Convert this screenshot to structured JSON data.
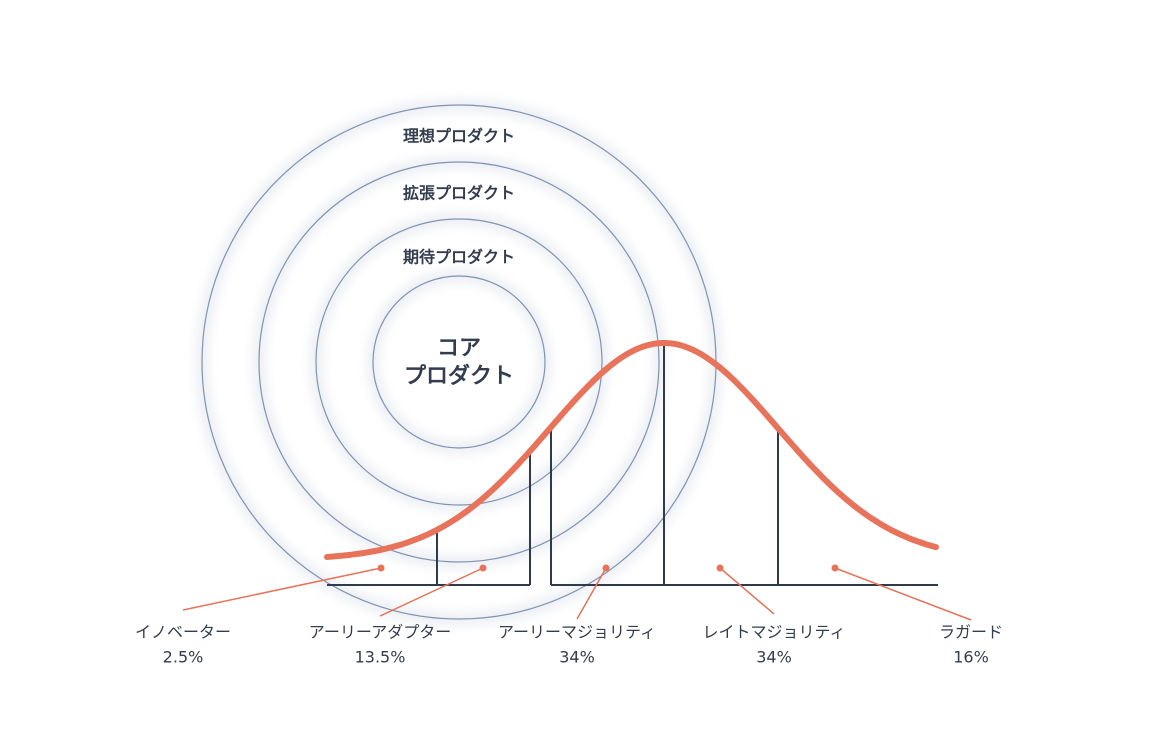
{
  "rings": [
    "理想プロダクト",
    "拡張プロダクト",
    "期待プロダクト"
  ],
  "core": [
    "コア",
    "プロダクト"
  ],
  "segments": [
    {
      "label": "イノベーター",
      "share": "2.5%"
    },
    {
      "label": "アーリーアダプター",
      "share": "13.5%"
    },
    {
      "label": "アーリーマジョリティ",
      "share": "34%"
    },
    {
      "label": "レイトマジョリティ",
      "share": "34%"
    },
    {
      "label": "ラガード",
      "share": "16%"
    }
  ]
}
